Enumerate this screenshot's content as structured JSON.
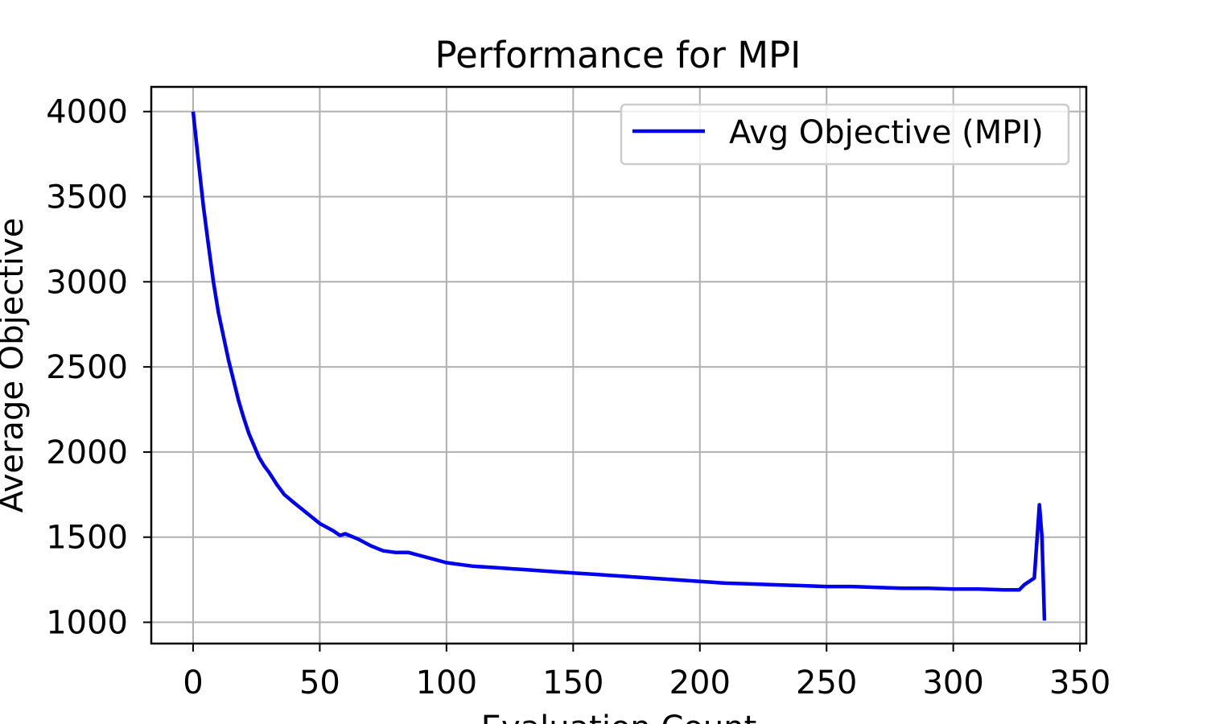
{
  "chart_data": {
    "type": "line",
    "title": "Performance for MPI",
    "xlabel": "Evaluation Count",
    "ylabel": "Average Objective",
    "xlim": [
      -16.5,
      352.5
    ],
    "ylim": [
      875,
      4145
    ],
    "x_ticks": [
      0,
      50,
      100,
      150,
      200,
      250,
      300,
      350
    ],
    "y_ticks": [
      1000,
      1500,
      2000,
      2500,
      3000,
      3500,
      4000
    ],
    "grid": true,
    "legend": "top-right",
    "series": [
      {
        "name": "Avg Objective (MPI)",
        "color": "#0000ee",
        "x": [
          0,
          2,
          4,
          6,
          8,
          10,
          12,
          14,
          16,
          18,
          20,
          22,
          24,
          26,
          28,
          30,
          33,
          36,
          40,
          45,
          50,
          55,
          58,
          60,
          65,
          70,
          75,
          80,
          85,
          90,
          95,
          100,
          110,
          120,
          130,
          140,
          150,
          160,
          170,
          180,
          190,
          200,
          210,
          220,
          230,
          240,
          250,
          260,
          270,
          280,
          290,
          300,
          310,
          320,
          326,
          328,
          330,
          332,
          334,
          335,
          336
        ],
        "values": [
          4000,
          3720,
          3450,
          3220,
          3000,
          2820,
          2680,
          2540,
          2420,
          2300,
          2200,
          2110,
          2040,
          1970,
          1920,
          1880,
          1810,
          1750,
          1700,
          1640,
          1580,
          1540,
          1510,
          1520,
          1490,
          1450,
          1420,
          1410,
          1410,
          1390,
          1370,
          1350,
          1330,
          1320,
          1310,
          1300,
          1290,
          1280,
          1270,
          1260,
          1250,
          1240,
          1230,
          1225,
          1220,
          1215,
          1210,
          1210,
          1205,
          1200,
          1200,
          1195,
          1195,
          1190,
          1190,
          1220,
          1240,
          1260,
          1690,
          1500,
          1010
        ]
      }
    ]
  }
}
